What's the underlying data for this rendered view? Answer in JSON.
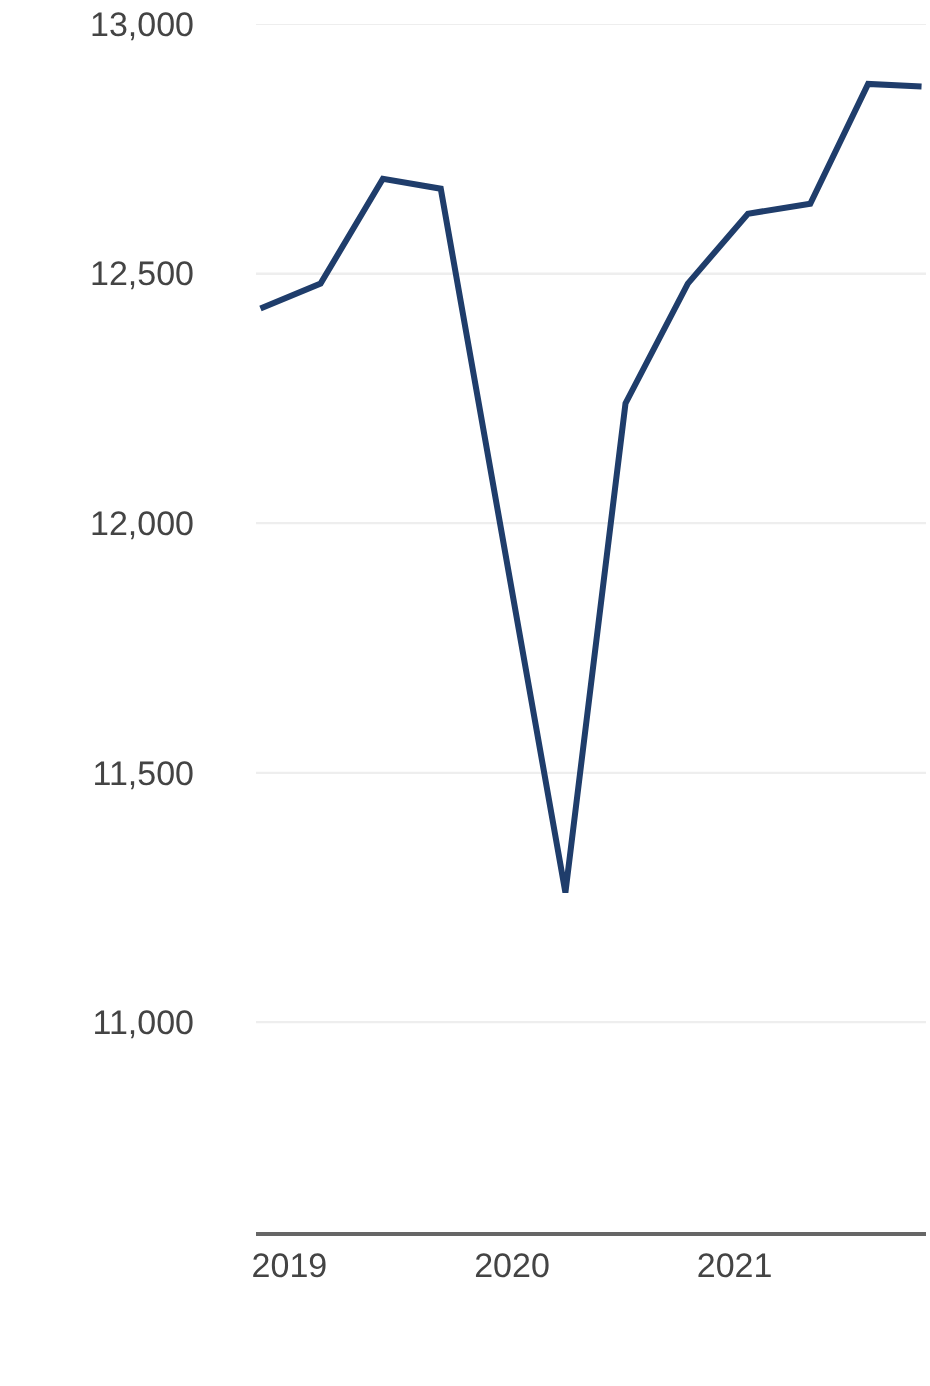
{
  "chart_data": {
    "type": "line",
    "x": [
      2018.87,
      2019.14,
      2019.42,
      2019.68,
      2020.24,
      2020.51,
      2020.79,
      2021.06,
      2021.34,
      2021.6,
      2021.84
    ],
    "series": [
      {
        "color": "#1f3d6b",
        "values": [
          12430,
          12480,
          12690,
          12670,
          11260,
          12240,
          12480,
          12620,
          12640,
          12880,
          12875
        ]
      }
    ],
    "xlim": [
      2018.85,
      2021.86
    ],
    "xticks": [
      2019,
      2020,
      2021
    ],
    "ylim": [
      10580,
      13000
    ],
    "yticks": [
      {
        "value": 11000,
        "label": "11,000"
      },
      {
        "value": 11500,
        "label": "11,500"
      },
      {
        "value": 12000,
        "label": "12,000"
      },
      {
        "value": 12500,
        "label": "12,500"
      },
      {
        "value": 13000,
        "label": "13,000"
      }
    ],
    "grid": "y",
    "marker": "none",
    "line_style": "solid"
  }
}
